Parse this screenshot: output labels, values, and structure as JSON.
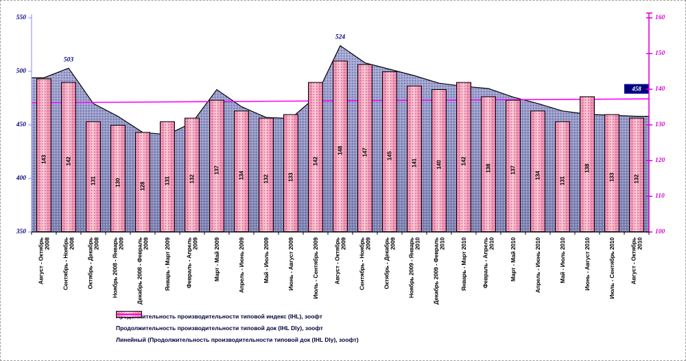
{
  "chart_data": {
    "type": "combo",
    "title": "",
    "categories": [
      "Август - Октябрь 2008",
      "Сентябрь - Ноябрь 2008",
      "Октябрь - Декабрь 2008",
      "Ноябрь 2008 - Январь 2009",
      "Декабрь 2008 - Февраль 2009",
      "Январь - Март 2009",
      "Февраль - Апрель 2009",
      "Март - Май 2009",
      "Апрель - Июнь 2009",
      "Май - Июль 2009",
      "Июнь - Август 2009",
      "Июль - Сентябрь 2009",
      "Август - Октябрь 2009",
      "Сентябрь - Ноябрь 2009",
      "Октябрь - Декабрь 2009",
      "Ноябрь 2009 - Январь 2010",
      "Декабрь 2009 - Февраль 2010",
      "Январь - Март 2010",
      "Февраль - Апрель 2010",
      "Март - Май 2010",
      "Апрель - Июнь 2010",
      "Май - Июль 2010",
      "Июнь - Август 2010",
      "Июль - Сентябрь 2010",
      "Август - Октябрь 2010"
    ],
    "series": [
      {
        "name": "Продолжительность производительности типовой индекс (IHL), зоофт",
        "type": "area",
        "axis": "left",
        "values": [
          494,
          503,
          470,
          458,
          443,
          441,
          452,
          483,
          467,
          457,
          456,
          476,
          524,
          508,
          502,
          496,
          489,
          486,
          484,
          476,
          470,
          463,
          460,
          459,
          458
        ]
      },
      {
        "name": "Продолжительность производительности типовой док (IHL Dly), зоофт",
        "type": "bar",
        "axis": "right",
        "values": [
          143,
          142,
          131,
          130,
          128,
          131,
          132,
          137,
          134,
          132,
          133,
          142,
          148,
          147,
          145,
          141,
          140,
          142,
          138,
          137,
          134,
          131,
          138,
          133,
          132
        ]
      },
      {
        "name": "Линейный (Продолжительность производительности типовой док (IHL Dly), зоофт)",
        "type": "trendline",
        "axis": "right",
        "start_value": 136.2,
        "end_value": 137.3
      }
    ],
    "point_labels": [
      {
        "index": 1,
        "text": "503",
        "boxed": false
      },
      {
        "index": 12,
        "text": "524",
        "boxed": false
      },
      {
        "index": 24,
        "text": "458",
        "boxed": true
      }
    ],
    "left_axis": {
      "min": 350,
      "max": 550,
      "ticks": [
        350,
        400,
        450,
        500,
        550
      ]
    },
    "right_axis": {
      "min": 100,
      "max": 160,
      "ticks": [
        100,
        110,
        120,
        130,
        140,
        150,
        160
      ]
    },
    "grid": "off",
    "legend_position": "bottom"
  },
  "legend": {
    "items": [
      {
        "swatch": "area",
        "label": "Продолжительность производительности типовой индекс (IHL), зоофт"
      },
      {
        "swatch": "bar",
        "label": "Продолжительность производительности типовой док (IHL Dly), зоофт"
      },
      {
        "swatch": "line",
        "label": "Линейный (Продолжительность производительности типовой док (IHL Dly), зоофт)"
      }
    ]
  },
  "colors": {
    "bar_fill": "#e26fa2",
    "bar_fill_light": "#ffc9dd",
    "bar_dot": "#b8437c",
    "bar_accent_dot": "#efe08a",
    "bar_border": "#000000",
    "area_fill_top": "#a8acd6",
    "area_fill_bottom": "#8084b2",
    "area_dot": "#4c5093",
    "area_dot_light": "#d3d6ee",
    "area_border": "#000000",
    "trend": "#ff00ff",
    "left_axis_line": "#9999ff",
    "left_axis_text": "#000080",
    "right_axis_line": "#e000e0",
    "right_axis_text": "#d400d4",
    "bottom_axis_line": "#000000",
    "bar_label_text": "#000000",
    "category_text": "#000000",
    "point_label_text": "#000080",
    "boxed_label_bg": "#000080",
    "boxed_label_text": "#ffffff",
    "legend_text": "#00003c"
  }
}
